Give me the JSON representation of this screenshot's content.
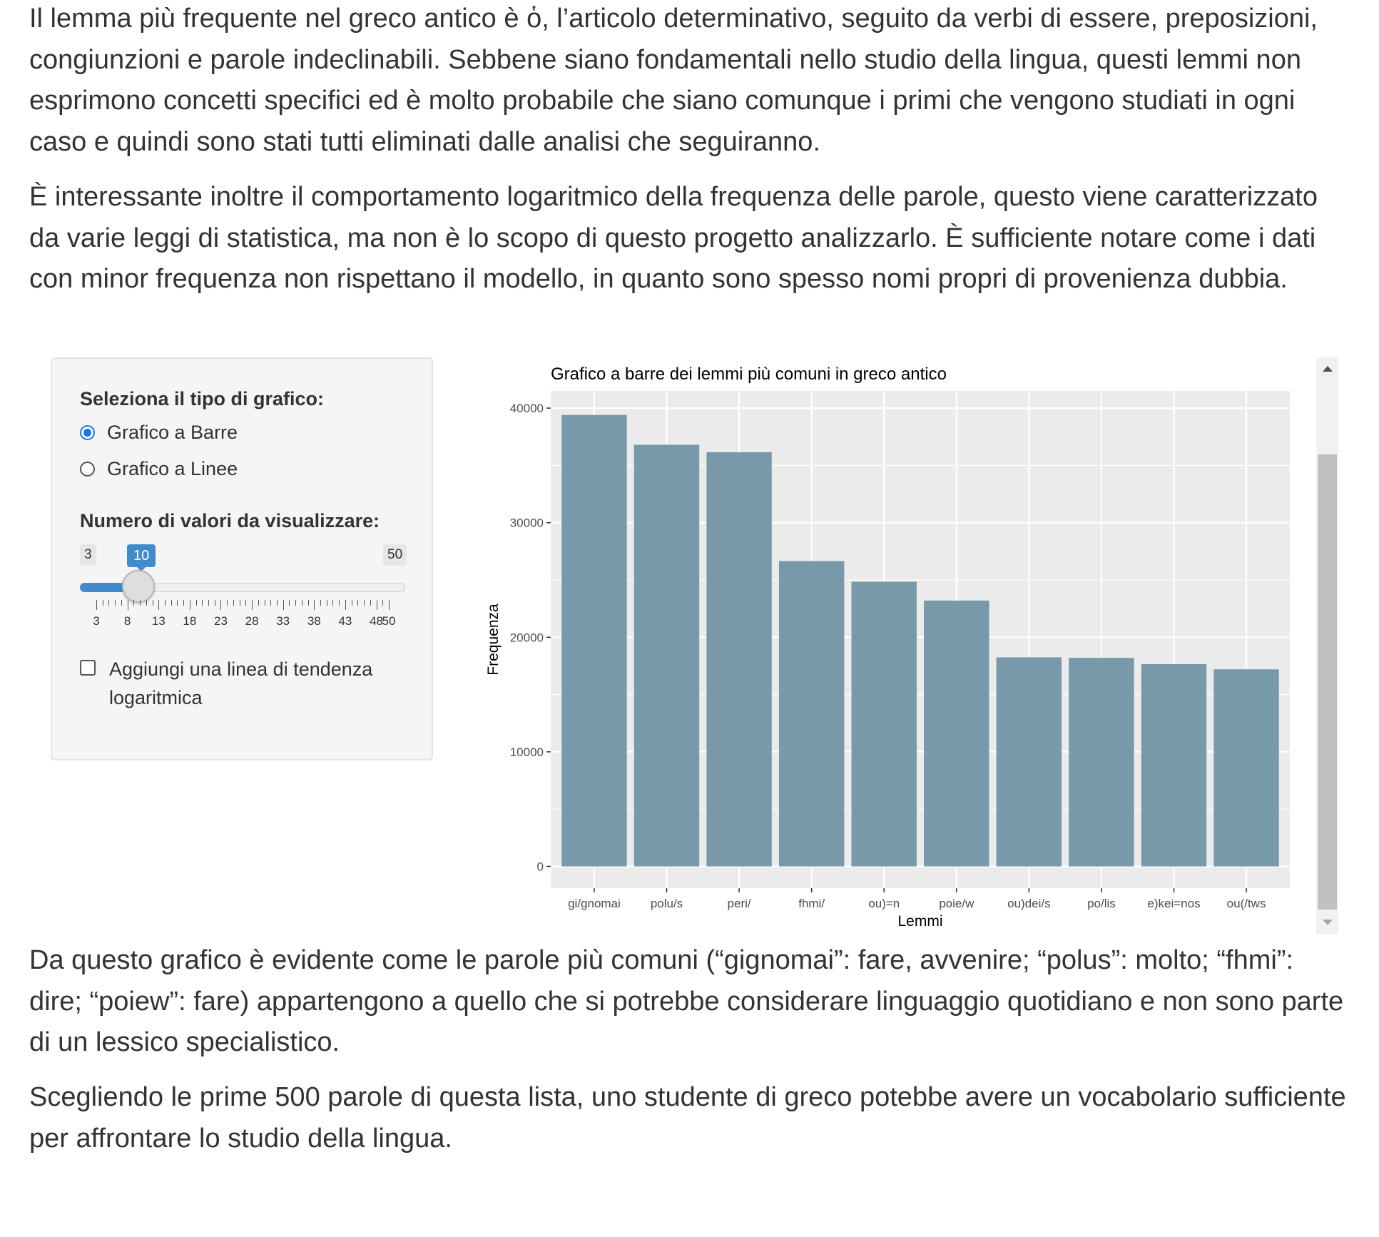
{
  "content": {
    "p1": "Il lemma più frequente nel greco antico è ὁ, l’articolo determinativo, seguito da verbi di essere, preposizioni, congiunzioni e parole indeclinabili. Sebbene siano fondamentali nello studio della lingua, questi lemmi non esprimono concetti specifici ed è molto probabile che siano comunque i primi che vengono studiati in ogni caso e quindi sono stati tutti eliminati dalle analisi che seguiranno.",
    "p2": "È interessante inoltre il comportamento logaritmico della frequenza delle parole, questo viene caratterizzato da varie leggi di statistica, ma non è lo scopo di questo progetto analizzarlo. È sufficiente notare come i dati con minor frequenza non rispettano il modello, in quanto sono spesso nomi propri di provenienza dubbia.",
    "p3": "Da questo grafico è evidente come le parole più comuni (“gignomai”: fare, avvenire; “polus”: molto; “fhmi”: dire; “poiew”: fare) appartengono a quello che si potrebbe considerare linguaggio quotidiano e non sono parte di un lessico specialistico.",
    "p4": "Scegliendo le prime 500 parole di questa lista, uno studente di greco potebbe avere un vocabolario sufficiente per affrontare lo studio della lingua."
  },
  "sidebar": {
    "chart_type_label": "Seleziona il tipo di grafico:",
    "options": [
      {
        "label": "Grafico a Barre",
        "selected": true
      },
      {
        "label": "Grafico a Linee",
        "selected": false
      }
    ],
    "slider": {
      "label": "Numero di valori da visualizzare:",
      "min": 3,
      "max": 50,
      "value": 10,
      "min_label": "3",
      "max_label": "50",
      "value_label": "10",
      "grid_labels": [
        "3",
        "8",
        "13",
        "18",
        "23",
        "28",
        "33",
        "38",
        "43",
        "48",
        "50"
      ],
      "accent_color": "#428bca"
    },
    "trend_checkbox": {
      "label": "Aggiungi una linea di tendenza logaritmica",
      "checked": false
    }
  },
  "chart_data": {
    "type": "bar",
    "title": "Grafico a barre dei lemmi più comuni in greco antico",
    "xlabel": "Lemmi",
    "ylabel": "Frequenza",
    "categories": [
      "gi/gnomai",
      "polu/s",
      "peri/",
      "fhmi/",
      "ou)=n",
      "poie/w",
      "ou)dei/s",
      "po/lis",
      "e)kei=nos",
      "ou(/tws"
    ],
    "values": [
      39400,
      36800,
      36150,
      26650,
      24850,
      23200,
      18250,
      18200,
      17650,
      17200
    ],
    "ylim": [
      0,
      40000
    ],
    "yticks": [
      "0",
      "10000",
      "20000",
      "30000",
      "40000"
    ],
    "bar_color": "#7799aa",
    "panel_background": "#ebebeb",
    "grid": true,
    "legend": "none"
  }
}
